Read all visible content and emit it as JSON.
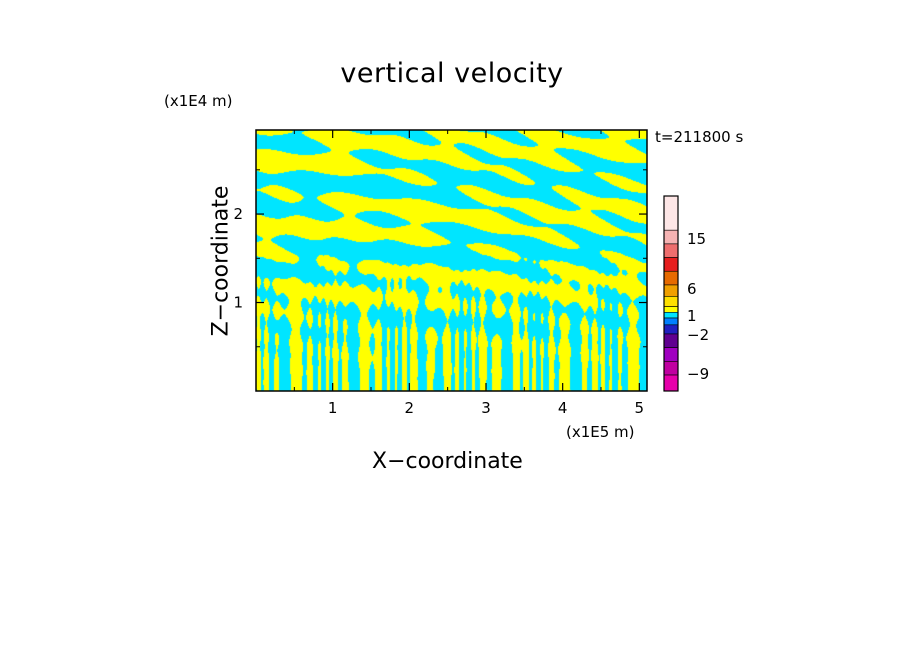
{
  "chart_data": {
    "type": "heatmap",
    "title": "vertical velocity",
    "xlabel": "X−coordinate",
    "ylabel": "Z−coordinate",
    "x_scale_label": "(x1E5 m)",
    "z_scale_label": "(x1E4 m)",
    "time_label": "t=211800 s",
    "x_ticks": [
      "1",
      "2",
      "3",
      "4",
      "5"
    ],
    "x_tick_values": [
      1,
      2,
      3,
      4,
      5
    ],
    "z_ticks": [
      "1",
      "2"
    ],
    "z_tick_values": [
      1,
      2
    ],
    "xlim": [
      0,
      5.1
    ],
    "zlim": [
      0,
      2.95
    ],
    "field_colors": {
      "positive": "#ffff00",
      "negative": "#00e5ff"
    },
    "colorbar": {
      "labels": [
        "15",
        "6",
        "1",
        "−2",
        "−9"
      ],
      "label_values": [
        15,
        6,
        1,
        -2,
        -9
      ],
      "colors_top_to_bottom": [
        "#fde6e6",
        "#f6b3b3",
        "#ee6e6e",
        "#e61e1e",
        "#e66a00",
        "#f0a000",
        "#ffe000",
        "#ffff00",
        "#00e5ff",
        "#0080ff",
        "#2020c0",
        "#600090",
        "#a000c0",
        "#c000a0",
        "#e600aa"
      ]
    }
  }
}
